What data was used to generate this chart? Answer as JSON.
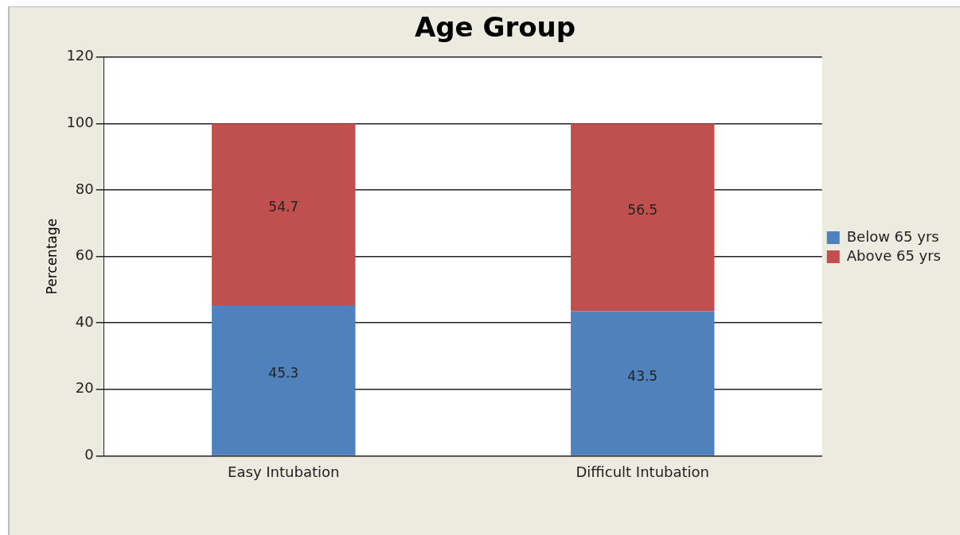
{
  "chart_data": {
    "type": "bar",
    "title": "Age Group",
    "ylabel": "Percentage",
    "categories": [
      "Easy Intubation",
      "Difficult Intubation"
    ],
    "stacked": true,
    "series": [
      {
        "name": "Below 65 yrs",
        "color": "#4f81bd",
        "values": [
          45.3,
          43.5
        ]
      },
      {
        "name": "Above 65 yrs",
        "color": "#c0504d",
        "values": [
          54.7,
          56.5
        ]
      }
    ],
    "ylim": [
      0,
      120
    ],
    "yticks": [
      0,
      20,
      40,
      60,
      80,
      100,
      120
    ],
    "grid": "y",
    "legend": "right",
    "data_labels": true
  }
}
